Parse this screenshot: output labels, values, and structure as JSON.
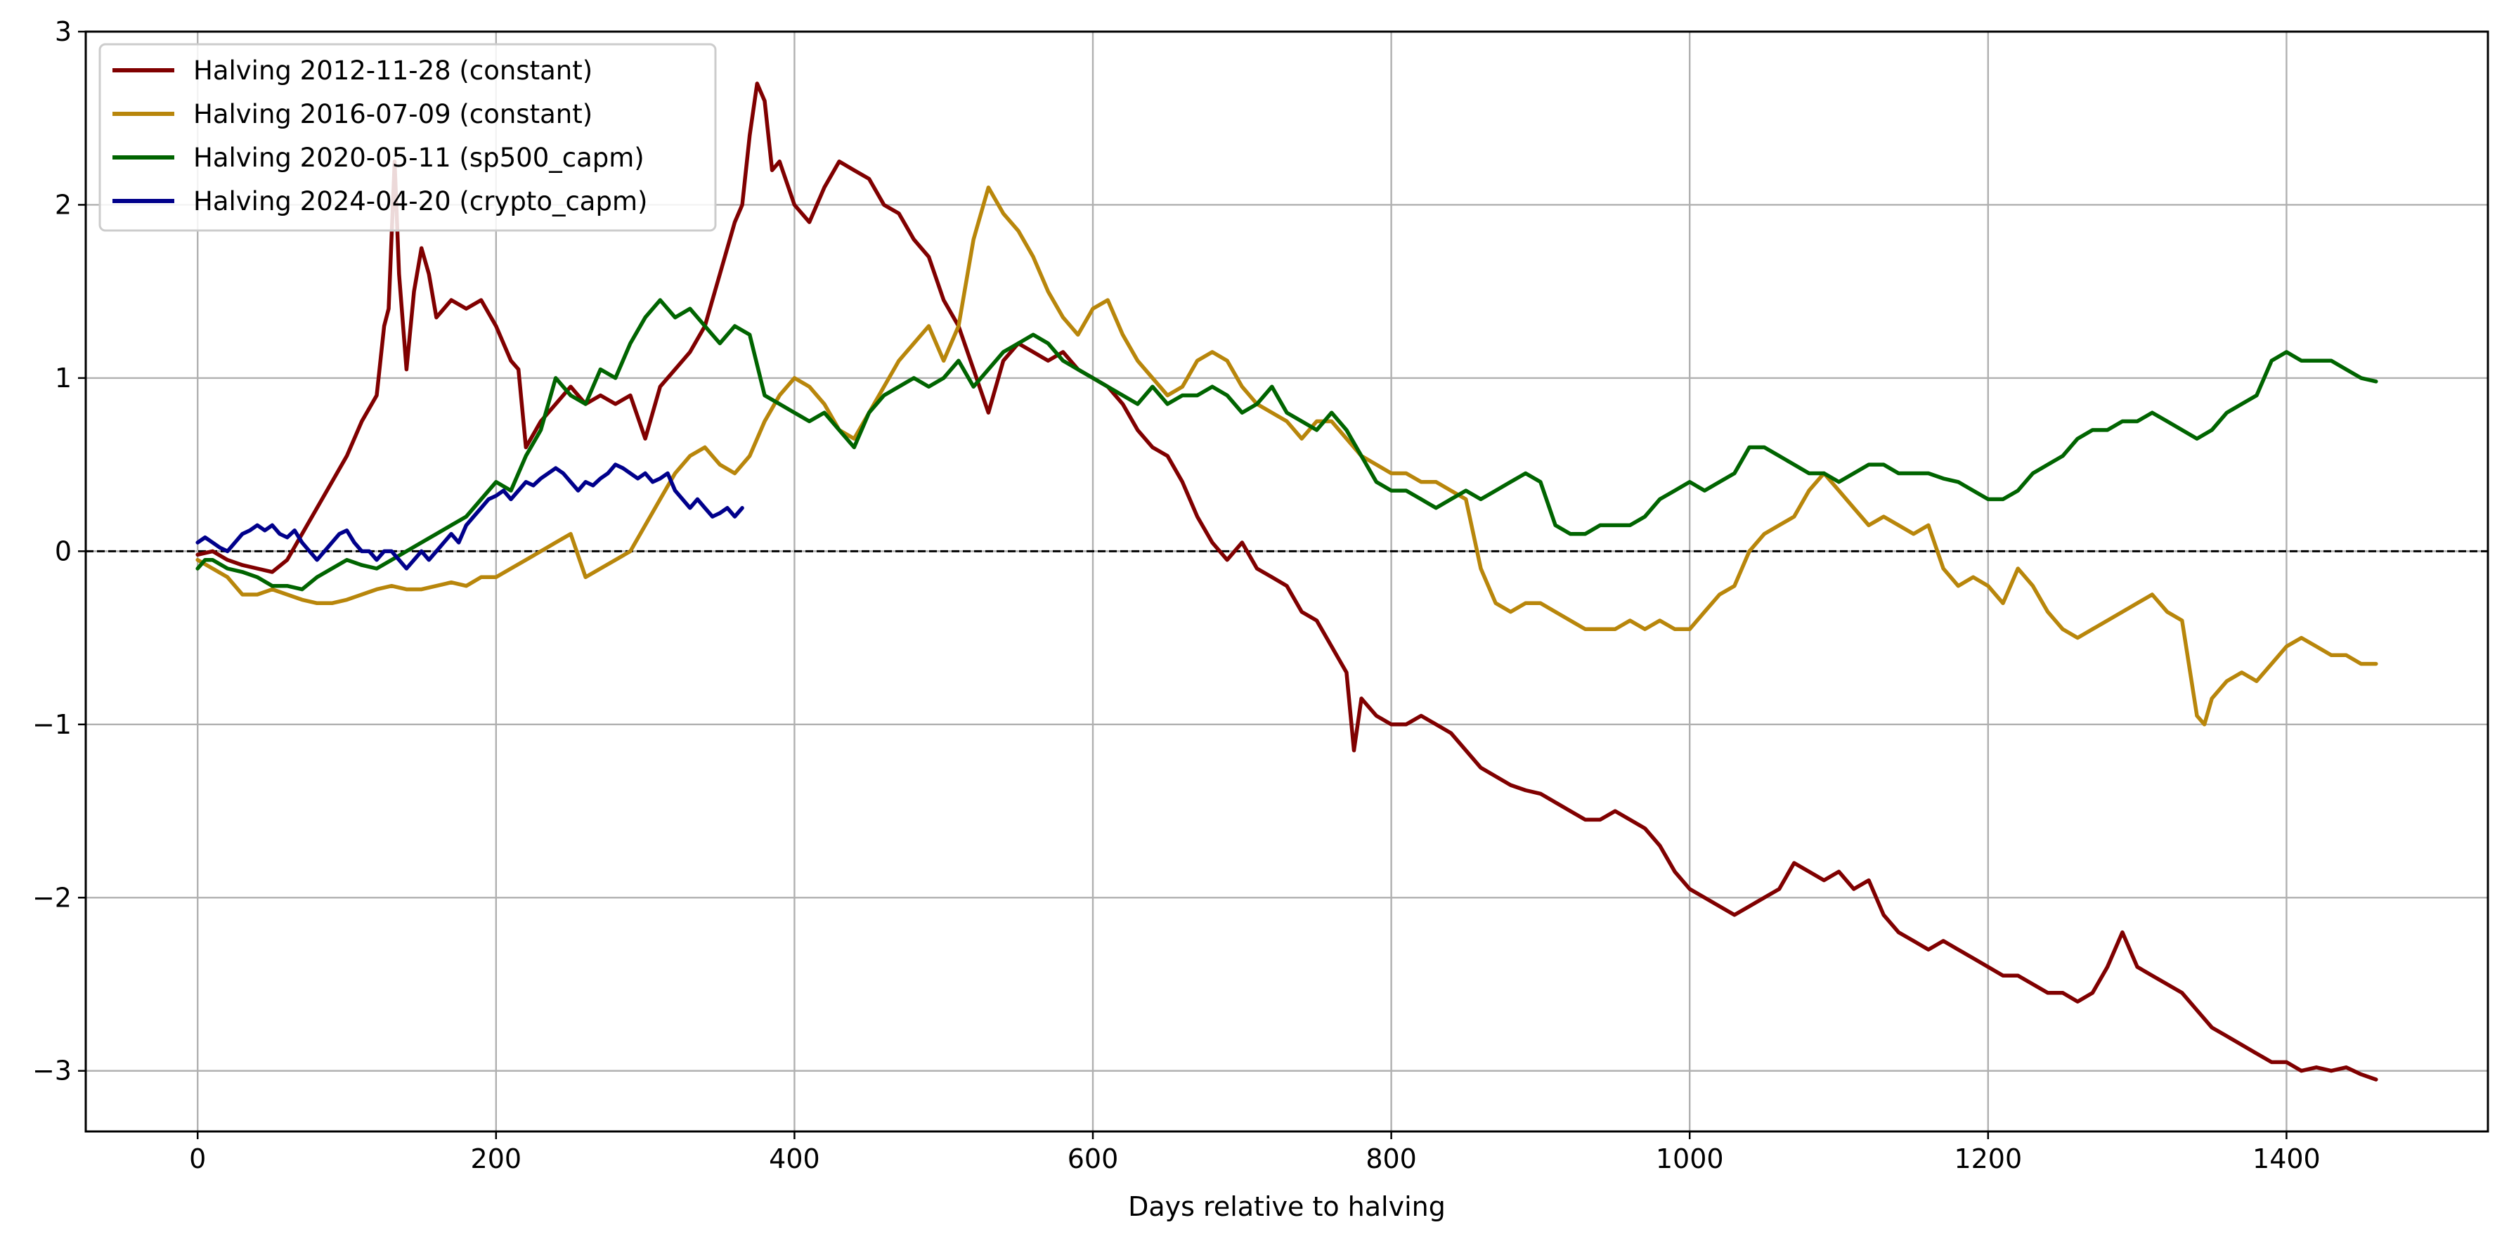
{
  "chart_data": {
    "type": "line",
    "title": "",
    "xlabel": "Days relative to halving",
    "ylabel": "",
    "xlim": [
      -75,
      1535
    ],
    "ylim": [
      -3.35,
      3.0
    ],
    "grid": true,
    "legend_position": "top-left",
    "reference_line": {
      "y": 0,
      "style": "dashed",
      "color": "#000000"
    },
    "x_ticks": [
      0,
      200,
      400,
      600,
      800,
      1000,
      1200,
      1400
    ],
    "x_tick_labels": [
      "0",
      "200",
      "400",
      "600",
      "800",
      "1000",
      "1200",
      "1400"
    ],
    "y_ticks": [
      3,
      2,
      1,
      0,
      -1,
      -2,
      -3
    ],
    "y_tick_labels": [
      "3",
      "2",
      "1",
      "0",
      "−1",
      "−2",
      "−3"
    ],
    "series": [
      {
        "name": "Halving 2012-11-28 (constant)",
        "color": "#800000",
        "x": [
          0,
          10,
          20,
          30,
          40,
          50,
          60,
          70,
          80,
          90,
          100,
          110,
          120,
          125,
          128,
          132,
          135,
          140,
          145,
          150,
          155,
          160,
          170,
          180,
          190,
          200,
          210,
          215,
          220,
          230,
          240,
          250,
          260,
          270,
          280,
          290,
          300,
          310,
          320,
          330,
          340,
          350,
          360,
          365,
          370,
          375,
          380,
          385,
          390,
          400,
          410,
          420,
          430,
          440,
          450,
          460,
          470,
          480,
          490,
          500,
          510,
          520,
          530,
          540,
          550,
          560,
          570,
          580,
          590,
          600,
          610,
          620,
          630,
          640,
          650,
          660,
          670,
          680,
          690,
          700,
          710,
          720,
          730,
          740,
          750,
          760,
          770,
          775,
          780,
          790,
          800,
          810,
          820,
          830,
          840,
          850,
          860,
          870,
          880,
          890,
          900,
          910,
          920,
          930,
          940,
          950,
          960,
          970,
          980,
          990,
          1000,
          1010,
          1020,
          1030,
          1040,
          1050,
          1060,
          1070,
          1080,
          1090,
          1100,
          1110,
          1120,
          1130,
          1140,
          1150,
          1160,
          1170,
          1180,
          1190,
          1200,
          1210,
          1220,
          1230,
          1240,
          1250,
          1260,
          1270,
          1280,
          1290,
          1300,
          1310,
          1320,
          1330,
          1340,
          1350,
          1360,
          1370,
          1380,
          1390,
          1400,
          1410,
          1420,
          1430,
          1440,
          1450,
          1460
        ],
        "y": [
          -0.02,
          0.0,
          -0.05,
          -0.08,
          -0.1,
          -0.12,
          -0.05,
          0.1,
          0.25,
          0.4,
          0.55,
          0.75,
          0.9,
          1.3,
          1.4,
          2.25,
          1.6,
          1.05,
          1.5,
          1.75,
          1.6,
          1.35,
          1.45,
          1.4,
          1.45,
          1.3,
          1.1,
          1.05,
          0.6,
          0.75,
          0.85,
          0.95,
          0.85,
          0.9,
          0.85,
          0.9,
          0.65,
          0.95,
          1.05,
          1.15,
          1.3,
          1.6,
          1.9,
          2.0,
          2.4,
          2.7,
          2.6,
          2.2,
          2.25,
          2.0,
          1.9,
          2.1,
          2.25,
          2.2,
          2.15,
          2.0,
          1.95,
          1.8,
          1.7,
          1.45,
          1.3,
          1.05,
          0.8,
          1.1,
          1.2,
          1.15,
          1.1,
          1.15,
          1.05,
          1.0,
          0.95,
          0.85,
          0.7,
          0.6,
          0.55,
          0.4,
          0.2,
          0.05,
          -0.05,
          0.05,
          -0.1,
          -0.15,
          -0.2,
          -0.35,
          -0.4,
          -0.55,
          -0.7,
          -1.15,
          -0.85,
          -0.95,
          -1.0,
          -1.0,
          -0.95,
          -1.0,
          -1.05,
          -1.15,
          -1.25,
          -1.3,
          -1.35,
          -1.38,
          -1.4,
          -1.45,
          -1.5,
          -1.55,
          -1.55,
          -1.5,
          -1.55,
          -1.6,
          -1.7,
          -1.85,
          -1.95,
          -2.0,
          -2.05,
          -2.1,
          -2.05,
          -2.0,
          -1.95,
          -1.8,
          -1.85,
          -1.9,
          -1.85,
          -1.95,
          -1.9,
          -2.1,
          -2.2,
          -2.25,
          -2.3,
          -2.25,
          -2.3,
          -2.35,
          -2.4,
          -2.45,
          -2.45,
          -2.5,
          -2.55,
          -2.55,
          -2.6,
          -2.55,
          -2.4,
          -2.2,
          -2.4,
          -2.45,
          -2.5,
          -2.55,
          -2.65,
          -2.75,
          -2.8,
          -2.85,
          -2.9,
          -2.95,
          -2.95,
          -3.0,
          -2.98,
          -3.0,
          -2.98,
          -3.02,
          -3.05
        ]
      },
      {
        "name": "Halving 2016-07-09 (constant)",
        "color": "#b8860b",
        "x": [
          0,
          10,
          20,
          30,
          40,
          50,
          60,
          70,
          80,
          90,
          100,
          110,
          120,
          130,
          140,
          150,
          160,
          170,
          180,
          190,
          200,
          210,
          220,
          230,
          240,
          250,
          260,
          270,
          280,
          290,
          300,
          310,
          320,
          330,
          340,
          350,
          360,
          370,
          380,
          390,
          400,
          410,
          420,
          430,
          440,
          450,
          460,
          470,
          480,
          490,
          500,
          510,
          520,
          530,
          540,
          550,
          560,
          570,
          580,
          590,
          600,
          610,
          620,
          630,
          640,
          650,
          660,
          670,
          680,
          690,
          700,
          710,
          720,
          730,
          740,
          750,
          760,
          770,
          780,
          790,
          800,
          810,
          820,
          830,
          840,
          850,
          860,
          870,
          880,
          890,
          900,
          910,
          920,
          930,
          940,
          950,
          960,
          970,
          980,
          990,
          1000,
          1010,
          1020,
          1030,
          1040,
          1050,
          1060,
          1070,
          1080,
          1090,
          1100,
          1110,
          1120,
          1130,
          1140,
          1150,
          1160,
          1170,
          1180,
          1190,
          1200,
          1210,
          1220,
          1230,
          1240,
          1250,
          1260,
          1270,
          1280,
          1290,
          1300,
          1310,
          1320,
          1330,
          1340,
          1345,
          1350,
          1360,
          1370,
          1380,
          1390,
          1400,
          1410,
          1420,
          1430,
          1440,
          1450,
          1460
        ],
        "y": [
          -0.05,
          -0.1,
          -0.15,
          -0.25,
          -0.25,
          -0.22,
          -0.25,
          -0.28,
          -0.3,
          -0.3,
          -0.28,
          -0.25,
          -0.22,
          -0.2,
          -0.22,
          -0.22,
          -0.2,
          -0.18,
          -0.2,
          -0.15,
          -0.15,
          -0.1,
          -0.05,
          0.0,
          0.05,
          0.1,
          -0.15,
          -0.1,
          -0.05,
          0.0,
          0.15,
          0.3,
          0.45,
          0.55,
          0.6,
          0.5,
          0.45,
          0.55,
          0.75,
          0.9,
          1.0,
          0.95,
          0.85,
          0.7,
          0.65,
          0.8,
          0.95,
          1.1,
          1.2,
          1.3,
          1.1,
          1.3,
          1.8,
          2.1,
          1.95,
          1.85,
          1.7,
          1.5,
          1.35,
          1.25,
          1.4,
          1.45,
          1.25,
          1.1,
          1.0,
          0.9,
          0.95,
          1.1,
          1.15,
          1.1,
          0.95,
          0.85,
          0.8,
          0.75,
          0.65,
          0.75,
          0.75,
          0.65,
          0.55,
          0.5,
          0.45,
          0.45,
          0.4,
          0.4,
          0.35,
          0.3,
          -0.1,
          -0.3,
          -0.35,
          -0.3,
          -0.3,
          -0.35,
          -0.4,
          -0.45,
          -0.45,
          -0.45,
          -0.4,
          -0.45,
          -0.4,
          -0.45,
          -0.45,
          -0.35,
          -0.25,
          -0.2,
          0.0,
          0.1,
          0.15,
          0.2,
          0.35,
          0.45,
          0.35,
          0.25,
          0.15,
          0.2,
          0.15,
          0.1,
          0.15,
          -0.1,
          -0.2,
          -0.15,
          -0.2,
          -0.3,
          -0.1,
          -0.2,
          -0.35,
          -0.45,
          -0.5,
          -0.45,
          -0.4,
          -0.35,
          -0.3,
          -0.25,
          -0.35,
          -0.4,
          -0.95,
          -1.0,
          -0.85,
          -0.75,
          -0.7,
          -0.75,
          -0.65,
          -0.55,
          -0.5,
          -0.55,
          -0.6,
          -0.6,
          -0.65,
          -0.65
        ]
      },
      {
        "name": "Halving 2020-05-11 (sp500_capm)",
        "color": "#006400",
        "x": [
          0,
          5,
          10,
          20,
          30,
          40,
          50,
          60,
          70,
          80,
          90,
          100,
          110,
          120,
          130,
          140,
          150,
          160,
          170,
          180,
          190,
          200,
          210,
          220,
          230,
          240,
          250,
          260,
          270,
          280,
          290,
          300,
          310,
          320,
          330,
          340,
          350,
          360,
          370,
          380,
          390,
          400,
          410,
          420,
          430,
          440,
          450,
          460,
          470,
          480,
          490,
          500,
          510,
          520,
          530,
          540,
          550,
          560,
          570,
          580,
          590,
          600,
          610,
          620,
          630,
          640,
          650,
          660,
          670,
          680,
          690,
          700,
          710,
          720,
          730,
          740,
          750,
          760,
          770,
          780,
          790,
          800,
          810,
          820,
          830,
          840,
          850,
          860,
          870,
          880,
          890,
          900,
          910,
          920,
          930,
          940,
          950,
          960,
          970,
          980,
          990,
          1000,
          1010,
          1020,
          1030,
          1040,
          1050,
          1060,
          1070,
          1080,
          1090,
          1100,
          1110,
          1120,
          1130,
          1140,
          1150,
          1160,
          1170,
          1180,
          1190,
          1200,
          1210,
          1220,
          1230,
          1240,
          1250,
          1260,
          1270,
          1280,
          1290,
          1300,
          1310,
          1320,
          1330,
          1340,
          1350,
          1360,
          1370,
          1380,
          1390,
          1400,
          1410,
          1420,
          1430,
          1440,
          1450,
          1460
        ],
        "y": [
          -0.1,
          -0.05,
          -0.05,
          -0.1,
          -0.12,
          -0.15,
          -0.2,
          -0.2,
          -0.22,
          -0.15,
          -0.1,
          -0.05,
          -0.08,
          -0.1,
          -0.05,
          0.0,
          0.05,
          0.1,
          0.15,
          0.2,
          0.3,
          0.4,
          0.35,
          0.55,
          0.7,
          1.0,
          0.9,
          0.85,
          1.05,
          1.0,
          1.2,
          1.35,
          1.45,
          1.35,
          1.4,
          1.3,
          1.2,
          1.3,
          1.25,
          0.9,
          0.85,
          0.8,
          0.75,
          0.8,
          0.7,
          0.6,
          0.8,
          0.9,
          0.95,
          1.0,
          0.95,
          1.0,
          1.1,
          0.95,
          1.05,
          1.15,
          1.2,
          1.25,
          1.2,
          1.1,
          1.05,
          1.0,
          0.95,
          0.9,
          0.85,
          0.95,
          0.85,
          0.9,
          0.9,
          0.95,
          0.9,
          0.8,
          0.85,
          0.95,
          0.8,
          0.75,
          0.7,
          0.8,
          0.7,
          0.55,
          0.4,
          0.35,
          0.35,
          0.3,
          0.25,
          0.3,
          0.35,
          0.3,
          0.35,
          0.4,
          0.45,
          0.4,
          0.15,
          0.1,
          0.1,
          0.15,
          0.15,
          0.15,
          0.2,
          0.3,
          0.35,
          0.4,
          0.35,
          0.4,
          0.45,
          0.6,
          0.6,
          0.55,
          0.5,
          0.45,
          0.45,
          0.4,
          0.45,
          0.5,
          0.5,
          0.45,
          0.45,
          0.45,
          0.42,
          0.4,
          0.35,
          0.3,
          0.3,
          0.35,
          0.45,
          0.5,
          0.55,
          0.65,
          0.7,
          0.7,
          0.75,
          0.75,
          0.8,
          0.75,
          0.7,
          0.65,
          0.7,
          0.8,
          0.85,
          0.9,
          1.1,
          1.15,
          1.1,
          1.1,
          1.1,
          1.05,
          1.0,
          0.98
        ]
      },
      {
        "name": "Halving 2024-04-20 (crypto_capm)",
        "color": "#00008b",
        "x": [
          0,
          5,
          10,
          15,
          20,
          25,
          30,
          35,
          40,
          45,
          50,
          55,
          60,
          65,
          70,
          75,
          80,
          85,
          90,
          95,
          100,
          105,
          110,
          115,
          120,
          125,
          130,
          135,
          140,
          145,
          150,
          155,
          160,
          165,
          170,
          175,
          180,
          185,
          190,
          195,
          200,
          205,
          210,
          215,
          220,
          225,
          230,
          235,
          240,
          245,
          250,
          255,
          260,
          265,
          270,
          275,
          280,
          285,
          290,
          295,
          300,
          305,
          310,
          315,
          320,
          325,
          330,
          335,
          340,
          345,
          350,
          355,
          360,
          365
        ],
        "y": [
          0.05,
          0.08,
          0.05,
          0.02,
          0.0,
          0.05,
          0.1,
          0.12,
          0.15,
          0.12,
          0.15,
          0.1,
          0.08,
          0.12,
          0.05,
          0.0,
          -0.05,
          0.0,
          0.05,
          0.1,
          0.12,
          0.05,
          0.0,
          0.0,
          -0.05,
          0.0,
          0.0,
          -0.05,
          -0.1,
          -0.05,
          0.0,
          -0.05,
          0.0,
          0.05,
          0.1,
          0.05,
          0.15,
          0.2,
          0.25,
          0.3,
          0.32,
          0.35,
          0.3,
          0.35,
          0.4,
          0.38,
          0.42,
          0.45,
          0.48,
          0.45,
          0.4,
          0.35,
          0.4,
          0.38,
          0.42,
          0.45,
          0.5,
          0.48,
          0.45,
          0.42,
          0.45,
          0.4,
          0.42,
          0.45,
          0.35,
          0.3,
          0.25,
          0.3,
          0.25,
          0.2,
          0.22,
          0.25,
          0.2,
          0.25
        ]
      }
    ]
  }
}
